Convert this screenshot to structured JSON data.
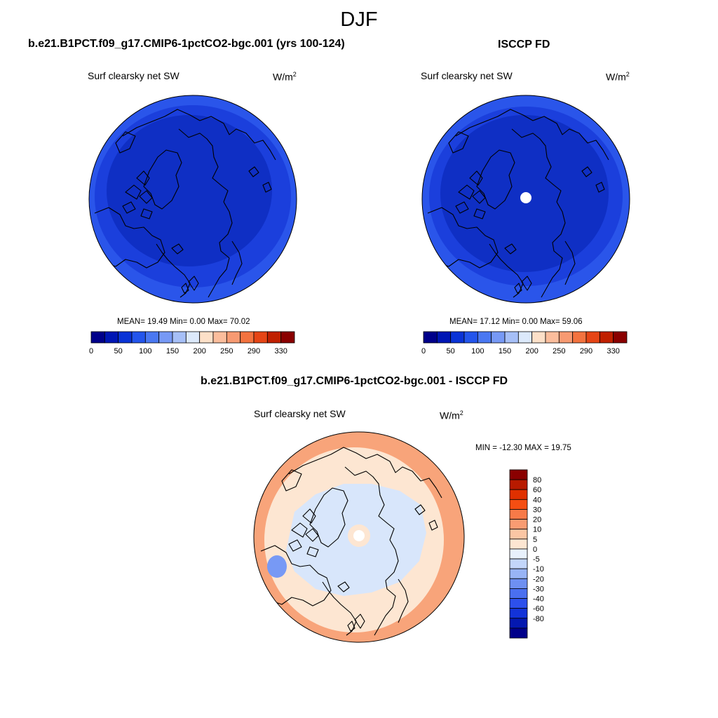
{
  "figure": {
    "season": "DJF",
    "left_title": "b.e21.B1PCT.f09_g17.CMIP6-1pctCO2-bgc.001 (yrs 100-124)",
    "right_title": "ISCCP FD",
    "diff_title": "b.e21.B1PCT.f09_g17.CMIP6-1pctCO2-bgc.001 - ISCCP FD"
  },
  "panels": {
    "model": {
      "variable": "Surf clearsky net SW",
      "units_base": "W/m",
      "units_exp": "2",
      "stats": "MEAN=  19.49  Min=   0.00  Max=  70.02"
    },
    "obs": {
      "variable": "Surf clearsky net SW",
      "units_base": "W/m",
      "units_exp": "2",
      "stats": "MEAN=  17.12  Min=   0.00  Max=  59.06"
    },
    "diff": {
      "variable": "Surf clearsky net SW",
      "units_base": "W/m",
      "units_exp": "2",
      "stats": "MIN = -12.30 MAX =  19.75"
    }
  },
  "colorbars": {
    "abs_colors": [
      "#00008a",
      "#0016b4",
      "#0a33d6",
      "#2355ec",
      "#4a78f2",
      "#7799f5",
      "#a6bff7",
      "#dce9fb",
      "#fde0c8",
      "#fbbd9c",
      "#f79a72",
      "#f3733f",
      "#e64515",
      "#c02000",
      "#8a0000"
    ],
    "abs_labels": [
      "0",
      "50",
      "100",
      "150",
      "200",
      "250",
      "290",
      "330"
    ],
    "diff_colors": [
      "#8a0000",
      "#b81a00",
      "#e03000",
      "#f54e12",
      "#f77a48",
      "#f99c72",
      "#fbc6a4",
      "#fde6d2",
      "#e8f1fc",
      "#c3d6fa",
      "#98b4f6",
      "#6e90f2",
      "#4a6ff0",
      "#2d50ec",
      "#1333d8",
      "#0418b0",
      "#00008a"
    ],
    "diff_labels": [
      "80",
      "60",
      "40",
      "30",
      "20",
      "10",
      "5",
      "0",
      "-5",
      "-10",
      "-20",
      "-30",
      "-40",
      "-60",
      "-80"
    ]
  },
  "map_fill": {
    "model": {
      "polar": "#0f2fc4",
      "mid": "#1b3fdc",
      "outer": "#2a55ea"
    },
    "obs": {
      "polar": "#0f2fc4",
      "mid": "#1b3fdc",
      "outer": "#2a55ea"
    },
    "diff": {
      "polar": "#d8e6fb",
      "mid": "#fde6d2",
      "outer": "#f8a47a"
    },
    "coast": "#000000"
  }
}
